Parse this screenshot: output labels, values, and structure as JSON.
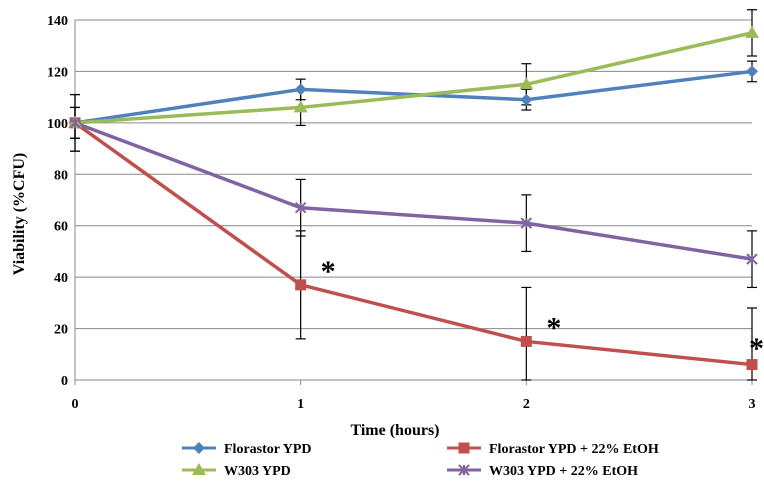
{
  "chart_data": {
    "type": "line",
    "xlabel": "Time (hours)",
    "ylabel": "Viability (%CFU)",
    "x": [
      0,
      1,
      2,
      3
    ],
    "x_tick_labels": [
      "0",
      "1",
      "2",
      "3"
    ],
    "ylim": [
      0,
      140
    ],
    "y_ticks": [
      0,
      20,
      40,
      60,
      80,
      100,
      120,
      140
    ],
    "grid": "horizontal",
    "legend_position": "bottom",
    "series": [
      {
        "name": "Florastor YPD",
        "values": [
          100,
          113,
          109,
          120
        ],
        "errors": [
          11,
          4,
          4,
          4
        ],
        "color": "#4f81bd",
        "marker": "diamond"
      },
      {
        "name": "Florastor YPD + 22% EtOH",
        "values": [
          100,
          37,
          15,
          6
        ],
        "errors": [
          11,
          21,
          21,
          22
        ],
        "color": "#c0504d",
        "marker": "square"
      },
      {
        "name": "W303 YPD",
        "values": [
          100,
          106,
          115,
          135
        ],
        "errors": [
          6,
          7,
          8,
          9
        ],
        "color": "#9bbb59",
        "marker": "triangle"
      },
      {
        "name": "W303 YPD + 22% EtOH",
        "values": [
          100,
          67,
          61,
          47
        ],
        "errors": [
          6,
          11,
          11,
          11
        ],
        "color": "#8064a2",
        "marker": "x"
      }
    ],
    "annotations": [
      {
        "text": "*",
        "x": 1,
        "y": 44
      },
      {
        "text": "*",
        "x": 2,
        "y": 22
      },
      {
        "text": "*",
        "x": 3,
        "y": 14
      }
    ]
  }
}
